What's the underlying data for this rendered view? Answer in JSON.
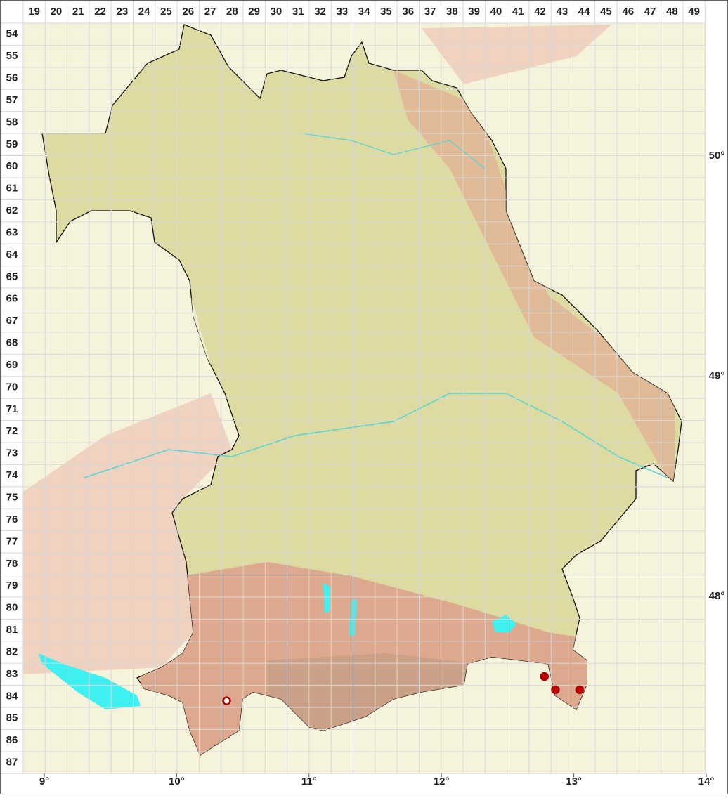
{
  "grid": {
    "columns": [
      19,
      20,
      21,
      22,
      23,
      24,
      25,
      26,
      27,
      28,
      29,
      30,
      31,
      32,
      33,
      34,
      35,
      36,
      37,
      38,
      39,
      40,
      41,
      42,
      43,
      44,
      45,
      46,
      47,
      48,
      49
    ],
    "rows": [
      54,
      55,
      56,
      57,
      58,
      59,
      60,
      61,
      62,
      63,
      64,
      65,
      66,
      67,
      68,
      69,
      70,
      71,
      72,
      73,
      74,
      75,
      76,
      77,
      78,
      79,
      80,
      81,
      82,
      83,
      84,
      85,
      86,
      87
    ]
  },
  "longitude_labels": [
    {
      "value": 9,
      "label": "9°"
    },
    {
      "value": 10,
      "label": "10°"
    },
    {
      "value": 11,
      "label": "11°"
    },
    {
      "value": 12,
      "label": "12°"
    },
    {
      "value": 13,
      "label": "13°"
    },
    {
      "value": 14,
      "label": "14°"
    }
  ],
  "latitude_labels": [
    {
      "value": 50,
      "label": "50°"
    },
    {
      "value": 49,
      "label": "49°"
    },
    {
      "value": 48,
      "label": "48°"
    }
  ],
  "records": [
    {
      "col": 42.2,
      "row": 83.1,
      "color": "#b00000",
      "fill": "#c00000"
    },
    {
      "col": 42.7,
      "row": 83.7,
      "color": "#b00000",
      "fill": "#c00000"
    },
    {
      "col": 43.8,
      "row": 83.7,
      "color": "#b00000",
      "fill": "#c00000"
    },
    {
      "col": 27.75,
      "row": 84.2,
      "color": "#b00000",
      "fill": "#ffffff"
    }
  ]
}
